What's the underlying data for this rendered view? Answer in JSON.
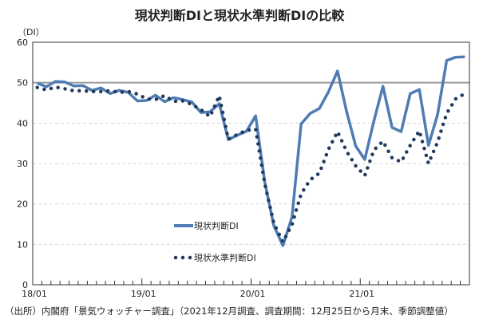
{
  "chart_data": {
    "type": "line",
    "title": "現状判断DIと現状水準判断DIの比較",
    "ylabel": "（DI）",
    "ylim": [
      0,
      60
    ],
    "yticks": [
      0,
      10,
      20,
      30,
      40,
      50,
      60
    ],
    "x_start": "2018-01",
    "x_end": "2021-12",
    "xtick_labels": [
      "18/01",
      "19/01",
      "20/01",
      "21/01"
    ],
    "reference_line": 50,
    "grid": true,
    "legend_placement": "center-left",
    "series": [
      {
        "name": "現状判断DI",
        "style": "solid",
        "color": "#4f7db3",
        "values": [
          49.9,
          49.0,
          50.3,
          50.2,
          49.2,
          49.3,
          48.1,
          48.7,
          47.3,
          48.1,
          47.6,
          45.5,
          45.6,
          46.9,
          45.3,
          46.3,
          45.8,
          45.2,
          42.6,
          42.8,
          44.8,
          35.9,
          37.0,
          38.0,
          41.8,
          25.5,
          14.6,
          9.7,
          16.8,
          39.8,
          42.4,
          43.6,
          47.7,
          52.9,
          42.8,
          34.3,
          31.0,
          40.5,
          49.1,
          38.9,
          37.9,
          47.3,
          48.3,
          34.5,
          42.1,
          55.5,
          56.3,
          56.4
        ]
      },
      {
        "name": "現状水準判断DI",
        "style": "dotted",
        "color": "#1f3a5c",
        "values": [
          48.8,
          48.2,
          48.9,
          48.5,
          48.0,
          48.0,
          47.8,
          47.8,
          48.0,
          47.6,
          47.8,
          47.2,
          46.0,
          45.8,
          46.8,
          45.4,
          45.5,
          44.6,
          43.3,
          41.6,
          46.8,
          36.0,
          37.2,
          38.2,
          38.5,
          25.0,
          15.2,
          10.6,
          14.9,
          22.5,
          26.0,
          27.6,
          33.5,
          37.9,
          33.0,
          29.4,
          27.0,
          33.3,
          35.5,
          31.4,
          30.4,
          34.5,
          38.1,
          30.0,
          35.3,
          42.4,
          46.0,
          47.3
        ]
      }
    ]
  },
  "source_note": "（出所）内閣府「景気ウォッチャー調査」（2021年12月調査、調査期間：12月25日から月末、季節調整値）"
}
